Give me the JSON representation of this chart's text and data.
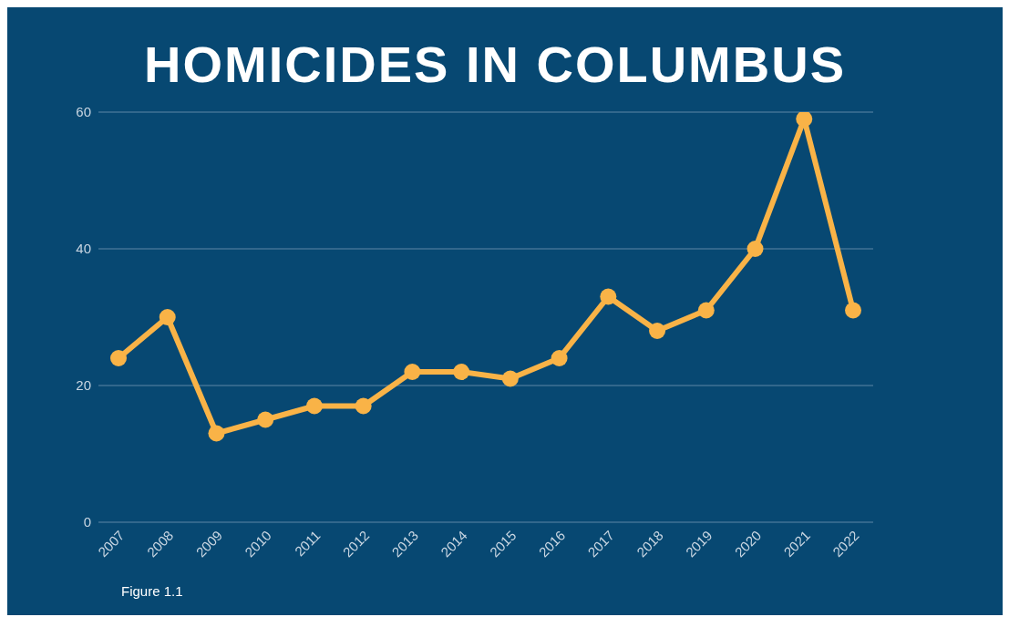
{
  "chart_data": {
    "type": "line",
    "title": "HOMICIDES IN COLUMBUS",
    "categories": [
      "2007",
      "2008",
      "2009",
      "2010",
      "2011",
      "2012",
      "2013",
      "2014",
      "2015",
      "2016",
      "2017",
      "2018",
      "2019",
      "2020",
      "2021",
      "2022"
    ],
    "series": [
      {
        "color": "#f9b347",
        "values": [
          24,
          30,
          13,
          15,
          17,
          17,
          22,
          22,
          21,
          24,
          33,
          28,
          31,
          40,
          59,
          31
        ]
      }
    ],
    "ylim": [
      0,
      60
    ],
    "yticks": [
      0,
      20,
      40,
      60
    ],
    "grid": "y",
    "legend": false,
    "marker": "circle",
    "line_style": "solid",
    "annotations": [
      "Figure 1.1"
    ]
  }
}
